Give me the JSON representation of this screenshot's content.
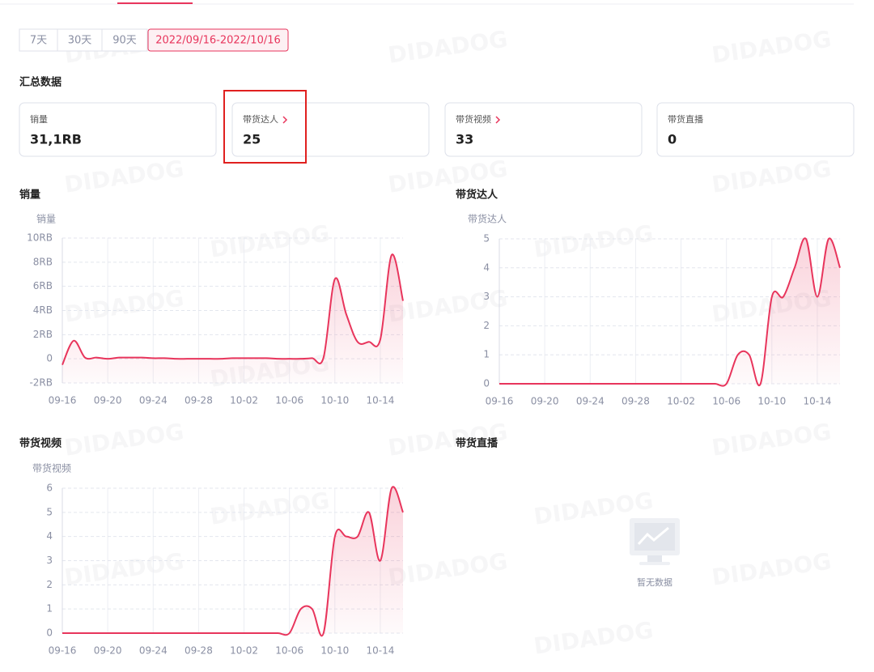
{
  "watermark": "DIDADOG",
  "filters": {
    "options": [
      "7天",
      "30天",
      "90天",
      "2022/09/16-2022/10/16"
    ],
    "active": 3
  },
  "summary": {
    "title": "汇总数据",
    "cards": [
      {
        "label": "销量",
        "value": "31,1RB"
      },
      {
        "label": "带货达人",
        "value": 25
      },
      {
        "label": "带货视频",
        "value": 33
      },
      {
        "label": "带货直播",
        "value": 0
      }
    ]
  },
  "empty_panel": {
    "title": "带货直播",
    "message": "暂无数据"
  },
  "chart_data": [
    {
      "type": "line",
      "title": "销量",
      "y_axis_label": "销量",
      "categories": [
        "09-16",
        null,
        null,
        null,
        "09-20",
        null,
        null,
        null,
        "09-24",
        null,
        null,
        null,
        "09-28",
        null,
        null,
        null,
        "10-02",
        null,
        null,
        null,
        "10-06",
        null,
        null,
        null,
        "10-10",
        null,
        null,
        null,
        "10-14",
        null,
        null
      ],
      "values": [
        -0.5,
        1.5,
        0.1,
        0.1,
        0,
        0.1,
        0.1,
        0.1,
        0.05,
        0.05,
        0,
        0,
        0,
        0,
        0,
        0.05,
        0.05,
        0.05,
        0.05,
        0,
        0,
        0,
        0.05,
        0.1,
        6.6,
        3.7,
        1.4,
        1.4,
        1.6,
        8.6,
        4.8
      ],
      "color": "#e8355c",
      "ylim": [
        -2,
        10
      ],
      "yticks": [
        {
          "value": -2,
          "label": "-2RB"
        },
        0,
        {
          "value": 2,
          "label": "2RB"
        },
        {
          "value": 4,
          "label": "4RB"
        },
        {
          "value": 6,
          "label": "6RB"
        },
        {
          "value": 8,
          "label": "8RB"
        },
        {
          "value": 10,
          "label": "10RB"
        }
      ],
      "grid": true
    },
    {
      "type": "line",
      "title": "带货达人",
      "y_axis_label": "带货达人",
      "categories": [
        "09-16",
        null,
        null,
        null,
        "09-20",
        null,
        null,
        null,
        "09-24",
        null,
        null,
        null,
        "09-28",
        null,
        null,
        null,
        "10-02",
        null,
        null,
        null,
        "10-06",
        null,
        null,
        null,
        "10-10",
        null,
        null,
        null,
        "10-14",
        null,
        null
      ],
      "values": [
        0,
        0,
        0,
        0,
        0,
        0,
        0,
        0,
        0,
        0,
        0,
        0,
        0,
        0,
        0,
        0,
        0,
        0,
        0,
        0,
        0,
        1,
        1,
        0,
        3,
        3,
        4,
        5,
        3,
        5,
        4
      ],
      "color": "#e8355c",
      "ylim": [
        0,
        5
      ],
      "yticks": [
        0,
        1,
        2,
        3,
        4,
        5
      ],
      "grid": true
    },
    {
      "type": "line",
      "title": "带货视频",
      "y_axis_label": "带货视频",
      "categories": [
        "09-16",
        null,
        null,
        null,
        "09-20",
        null,
        null,
        null,
        "09-24",
        null,
        null,
        null,
        "09-28",
        null,
        null,
        null,
        "10-02",
        null,
        null,
        null,
        "10-06",
        null,
        null,
        null,
        "10-10",
        null,
        null,
        null,
        "10-14",
        null,
        null
      ],
      "values": [
        0,
        0,
        0,
        0,
        0,
        0,
        0,
        0,
        0,
        0,
        0,
        0,
        0,
        0,
        0,
        0,
        0,
        0,
        0,
        0,
        0,
        1,
        1,
        0,
        4,
        4,
        4,
        5,
        3,
        6,
        5
      ],
      "color": "#e8355c",
      "ylim": [
        0,
        6
      ],
      "yticks": [
        0,
        1,
        2,
        3,
        4,
        5,
        6
      ],
      "grid": true
    }
  ]
}
